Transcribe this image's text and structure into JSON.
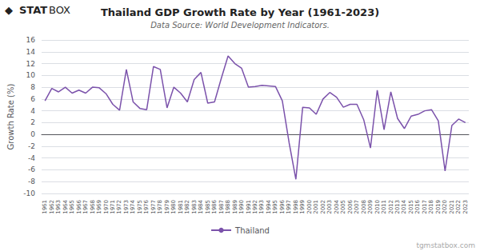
{
  "chart_data": {
    "type": "line",
    "title": "Thailand GDP Growth Rate by Year (1961-2023)",
    "subtitle": "Data Source: World Development Indicators.",
    "ylabel": "Growth Rate (%)",
    "annotations": [
      "◆",
      "STAT",
      "BOX",
      "tgmstatbox.com"
    ],
    "categories": [
      "1961",
      "1962",
      "1963",
      "1964",
      "1965",
      "1966",
      "1967",
      "1968",
      "1969",
      "1970",
      "1971",
      "1972",
      "1973",
      "1974",
      "1975",
      "1976",
      "1977",
      "1978",
      "1979",
      "1980",
      "1981",
      "1982",
      "1983",
      "1984",
      "1985",
      "1986",
      "1987",
      "1988",
      "1989",
      "1990",
      "1991",
      "1992",
      "1993",
      "1994",
      "1995",
      "1996",
      "1997",
      "1998",
      "1999",
      "2000",
      "2001",
      "2002",
      "2003",
      "2004",
      "2005",
      "2006",
      "2007",
      "2008",
      "2009",
      "2010",
      "2011",
      "2012",
      "2013",
      "2014",
      "2015",
      "2016",
      "2017",
      "2018",
      "2019",
      "2020",
      "2021",
      "2022",
      "2023"
    ],
    "series": [
      {
        "name": "Thailand",
        "color": "#7B52AB",
        "values": [
          5.7,
          7.8,
          7.2,
          8.0,
          7.0,
          7.5,
          7.0,
          8.0,
          7.9,
          6.9,
          5.1,
          4.1,
          11.0,
          5.5,
          4.4,
          4.2,
          11.5,
          11.0,
          4.5,
          8.0,
          7.0,
          5.5,
          9.3,
          10.5,
          5.3,
          5.5,
          9.5,
          13.3,
          12.0,
          11.2,
          8.0,
          8.1,
          8.3,
          8.2,
          8.1,
          5.7,
          -1.4,
          -7.6,
          4.6,
          4.5,
          3.4,
          6.0,
          7.1,
          6.3,
          4.6,
          5.1,
          5.1,
          2.5,
          -2.3,
          7.5,
          0.8,
          7.2,
          2.7,
          1.0,
          3.1,
          3.4,
          4.0,
          4.2,
          2.3,
          -6.2,
          1.5,
          2.6,
          2.0
        ]
      }
    ],
    "ylim": [
      -10,
      16
    ],
    "yticks": [
      -10,
      -8,
      -6,
      -4,
      -2,
      0,
      2,
      4,
      6,
      8,
      10,
      12,
      14,
      16
    ],
    "grid": true,
    "legend": "bottom"
  }
}
